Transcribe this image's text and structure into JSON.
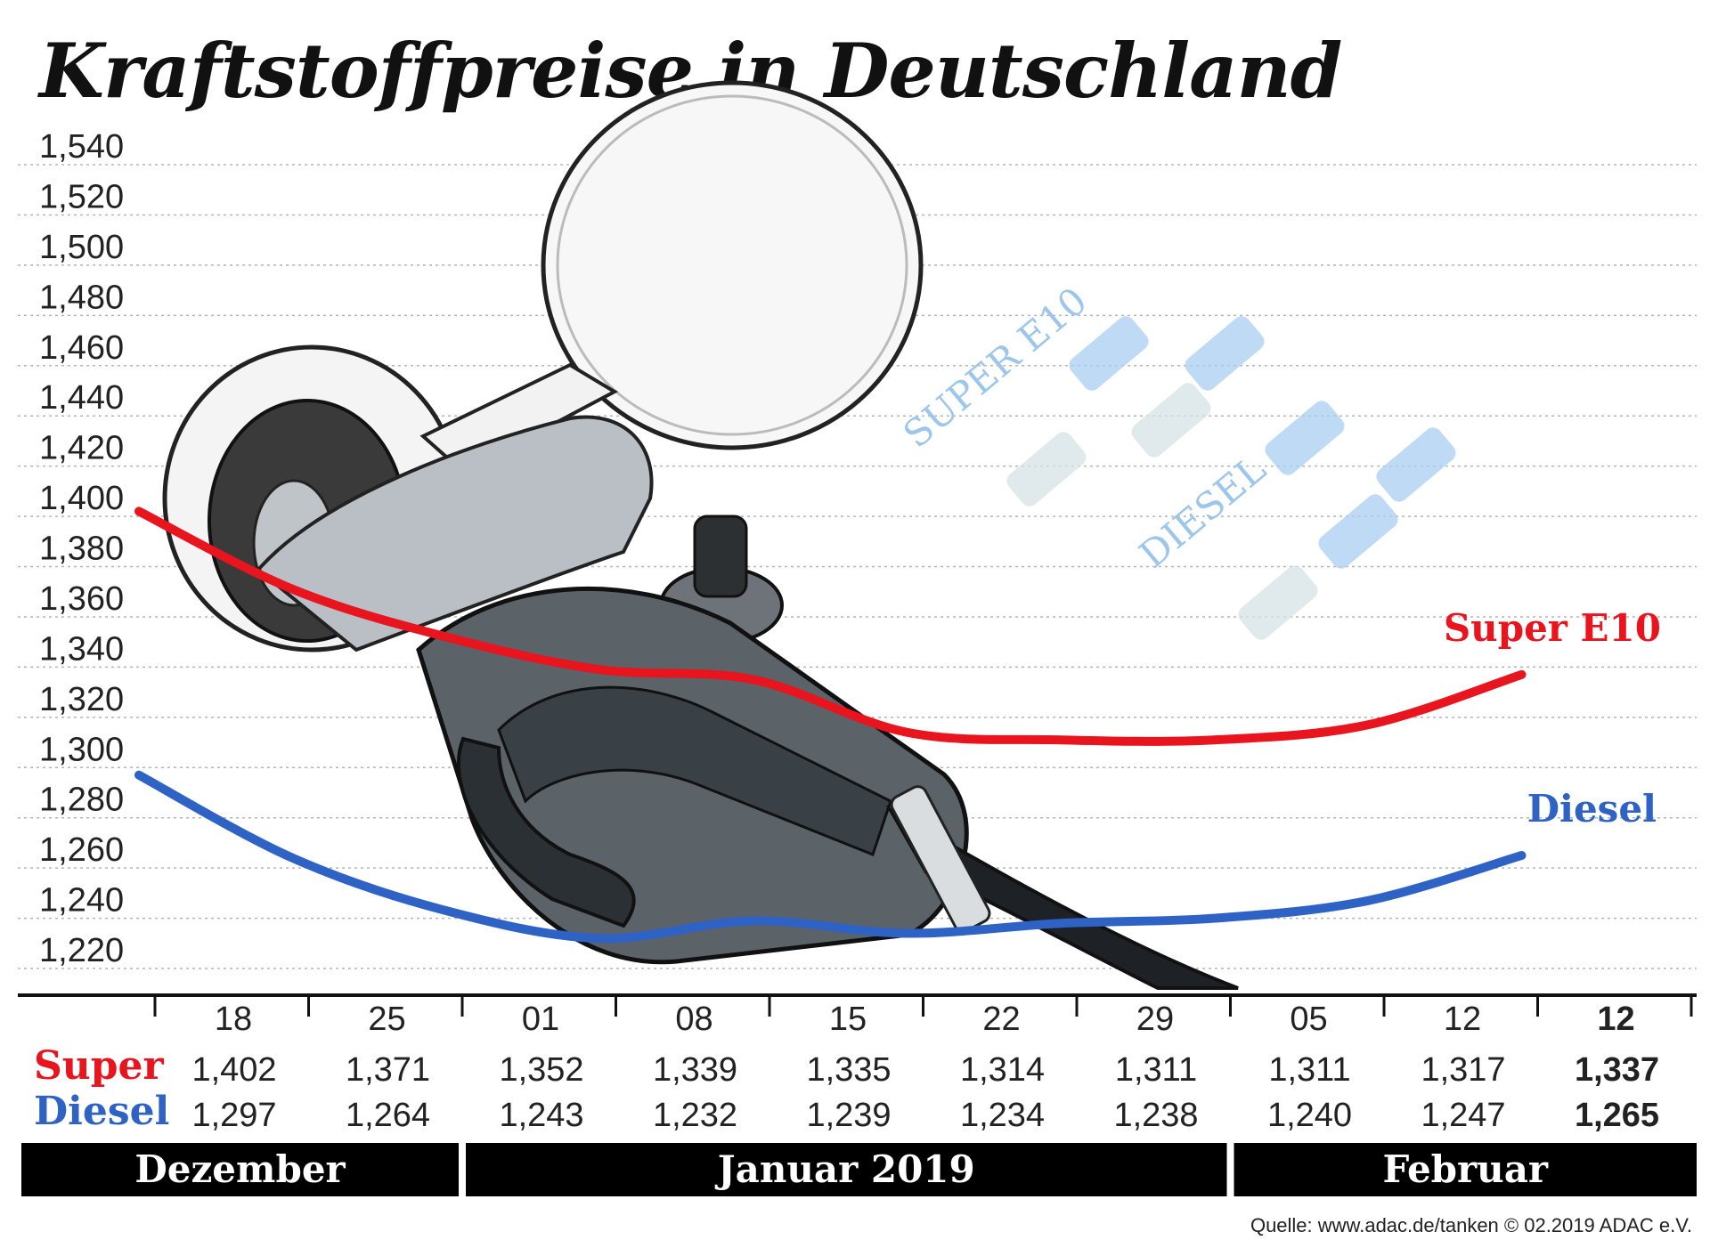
{
  "title": "Kraftstoffpreise in Deutschland",
  "source": "Quelle: www.adac.de/tanken   © 02.2019  ADAC e.V.",
  "decoration": {
    "pump_sign_labels": [
      "SUPER E10",
      "DIESEL"
    ]
  },
  "chart_data": {
    "type": "line",
    "title": "Kraftstoffpreise in Deutschland",
    "xlabel": "",
    "ylabel": "",
    "categories": [
      "18",
      "25",
      "01",
      "08",
      "15",
      "22",
      "29",
      "05",
      "12",
      "12"
    ],
    "months": [
      "Dezember",
      "Januar 2019",
      "Februar"
    ],
    "month_spans": [
      [
        0,
        1
      ],
      [
        2,
        6
      ],
      [
        7,
        9
      ]
    ],
    "ylim": [
      1.22,
      1.54
    ],
    "yticks": [
      "1,540",
      "1,520",
      "1,500",
      "1,480",
      "1,460",
      "1,440",
      "1,420",
      "1,400",
      "1,380",
      "1,360",
      "1,340",
      "1,320",
      "1,300",
      "1,280",
      "1,260",
      "1,240",
      "1,220"
    ],
    "ytick_values": [
      1.54,
      1.52,
      1.5,
      1.48,
      1.46,
      1.44,
      1.42,
      1.4,
      1.38,
      1.36,
      1.34,
      1.32,
      1.3,
      1.28,
      1.26,
      1.24,
      1.22
    ],
    "grid": true,
    "series": [
      {
        "name": "Super E10",
        "row_label": "Super",
        "color": "#e8141e",
        "values": [
          1.402,
          1.371,
          1.352,
          1.339,
          1.335,
          1.314,
          1.311,
          1.311,
          1.317,
          1.337
        ],
        "labels": [
          "1,402",
          "1,371",
          "1,352",
          "1,339",
          "1,335",
          "1,314",
          "1,311",
          "1,311",
          "1,317",
          "1,337"
        ]
      },
      {
        "name": "Diesel",
        "row_label": "Diesel",
        "color": "#2e62c4",
        "values": [
          1.297,
          1.264,
          1.243,
          1.232,
          1.239,
          1.234,
          1.238,
          1.24,
          1.247,
          1.265
        ],
        "labels": [
          "1,297",
          "1,264",
          "1,243",
          "1,232",
          "1,239",
          "1,234",
          "1,238",
          "1,240",
          "1,247",
          "1,265"
        ]
      }
    ],
    "highlight_index": 9
  }
}
